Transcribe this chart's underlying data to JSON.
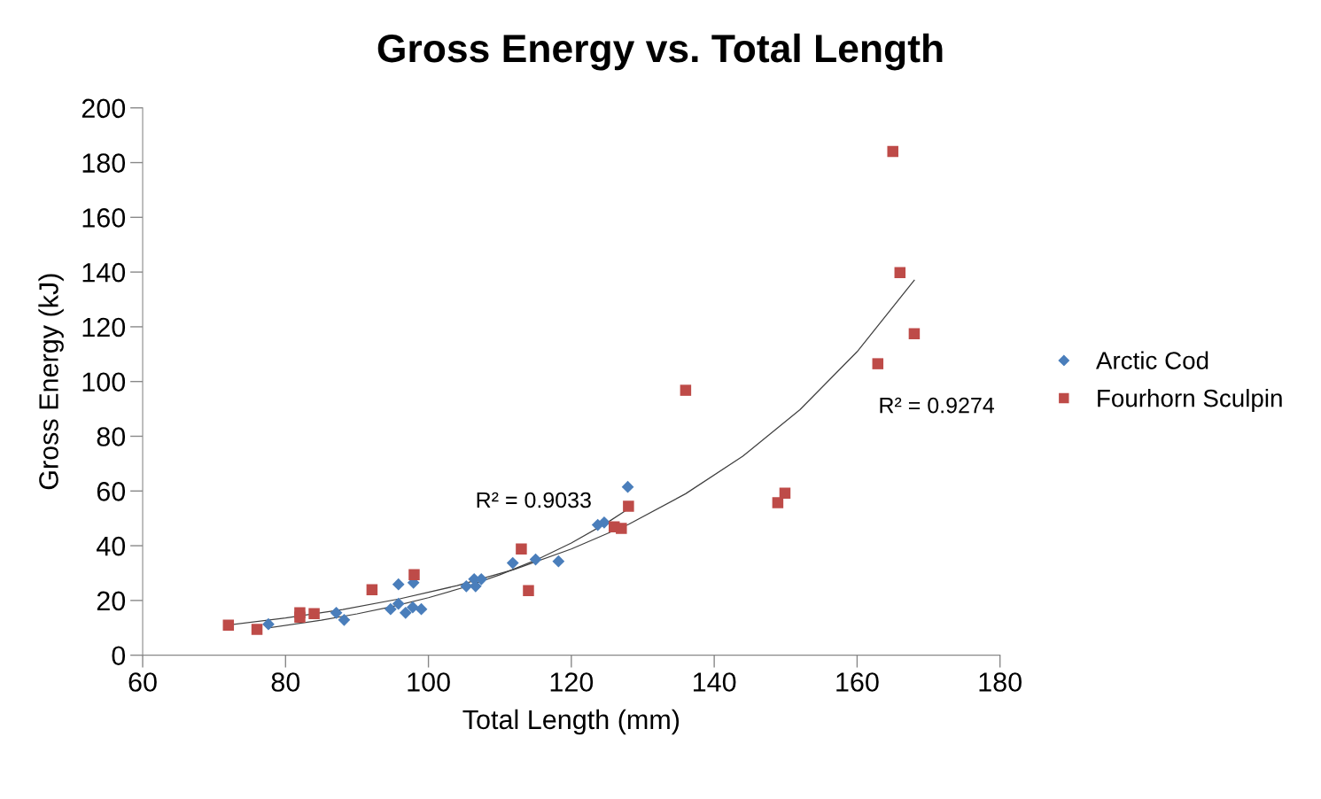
{
  "chart_data": {
    "type": "scatter",
    "title": "Gross Energy vs. Total Length",
    "xlabel": "Total Length (mm)",
    "ylabel": "Gross Energy (kJ)",
    "xlim": [
      60,
      180
    ],
    "xticks": [
      60,
      80,
      100,
      120,
      140,
      160,
      180
    ],
    "ylim": [
      0,
      200
    ],
    "yticks": [
      0,
      20,
      40,
      60,
      80,
      100,
      120,
      140,
      160,
      180,
      200
    ],
    "grid": false,
    "legend": "right",
    "series": [
      {
        "name": "Arctic Cod",
        "marker": "diamond",
        "color": "#4a7ebb",
        "x": [
          77.6,
          87.1,
          88.2,
          94.7,
          95.8,
          95.8,
          96.8,
          97.8,
          97.9,
          99.0,
          105.3,
          106.4,
          106.6,
          107.4,
          111.8,
          115.0,
          118.2,
          123.7,
          124.6,
          127.9
        ],
        "values": [
          11.3,
          15.5,
          12.9,
          16.8,
          25.9,
          18.8,
          15.5,
          17.5,
          26.5,
          16.8,
          25.2,
          27.8,
          25.2,
          27.8,
          33.7,
          35.0,
          34.3,
          47.6,
          48.5,
          61.5
        ]
      },
      {
        "name": "Fourhorn Sculpin",
        "marker": "square",
        "color": "#be4b48",
        "x": [
          72.0,
          76.0,
          82.0,
          82.0,
          84.0,
          92.1,
          98.0,
          113.0,
          114.0,
          126.0,
          127.0,
          128.0,
          136.0,
          148.9,
          149.9,
          162.9,
          165.0,
          166.0,
          168.0
        ],
        "values": [
          11.0,
          9.4,
          15.5,
          13.9,
          15.2,
          23.9,
          29.4,
          38.8,
          23.6,
          46.9,
          46.3,
          54.4,
          96.8,
          55.7,
          59.2,
          106.5,
          184.1,
          139.8,
          117.5
        ]
      },
      {
        "type": "line",
        "marker": "none",
        "color": "#404040",
        "x": [
          77.6,
          85,
          90,
          95,
          100,
          105,
          110,
          115,
          120,
          125,
          128
        ],
        "values": [
          10.0,
          12.8,
          15.1,
          17.8,
          21.0,
          24.8,
          29.4,
          34.7,
          41.0,
          48.4,
          53.5
        ]
      },
      {
        "type": "line",
        "marker": "none",
        "color": "#404040",
        "x": [
          72,
          80,
          88,
          96,
          104,
          112,
          120,
          128,
          136,
          144,
          152,
          160,
          168
        ],
        "values": [
          11.0,
          13.6,
          16.7,
          20.6,
          25.4,
          31.3,
          38.8,
          47.8,
          59.0,
          72.7,
          89.7,
          110.9,
          137.0
        ]
      }
    ],
    "annotations": [
      "R² = 0.9033",
      "R² = 0.9274"
    ]
  }
}
